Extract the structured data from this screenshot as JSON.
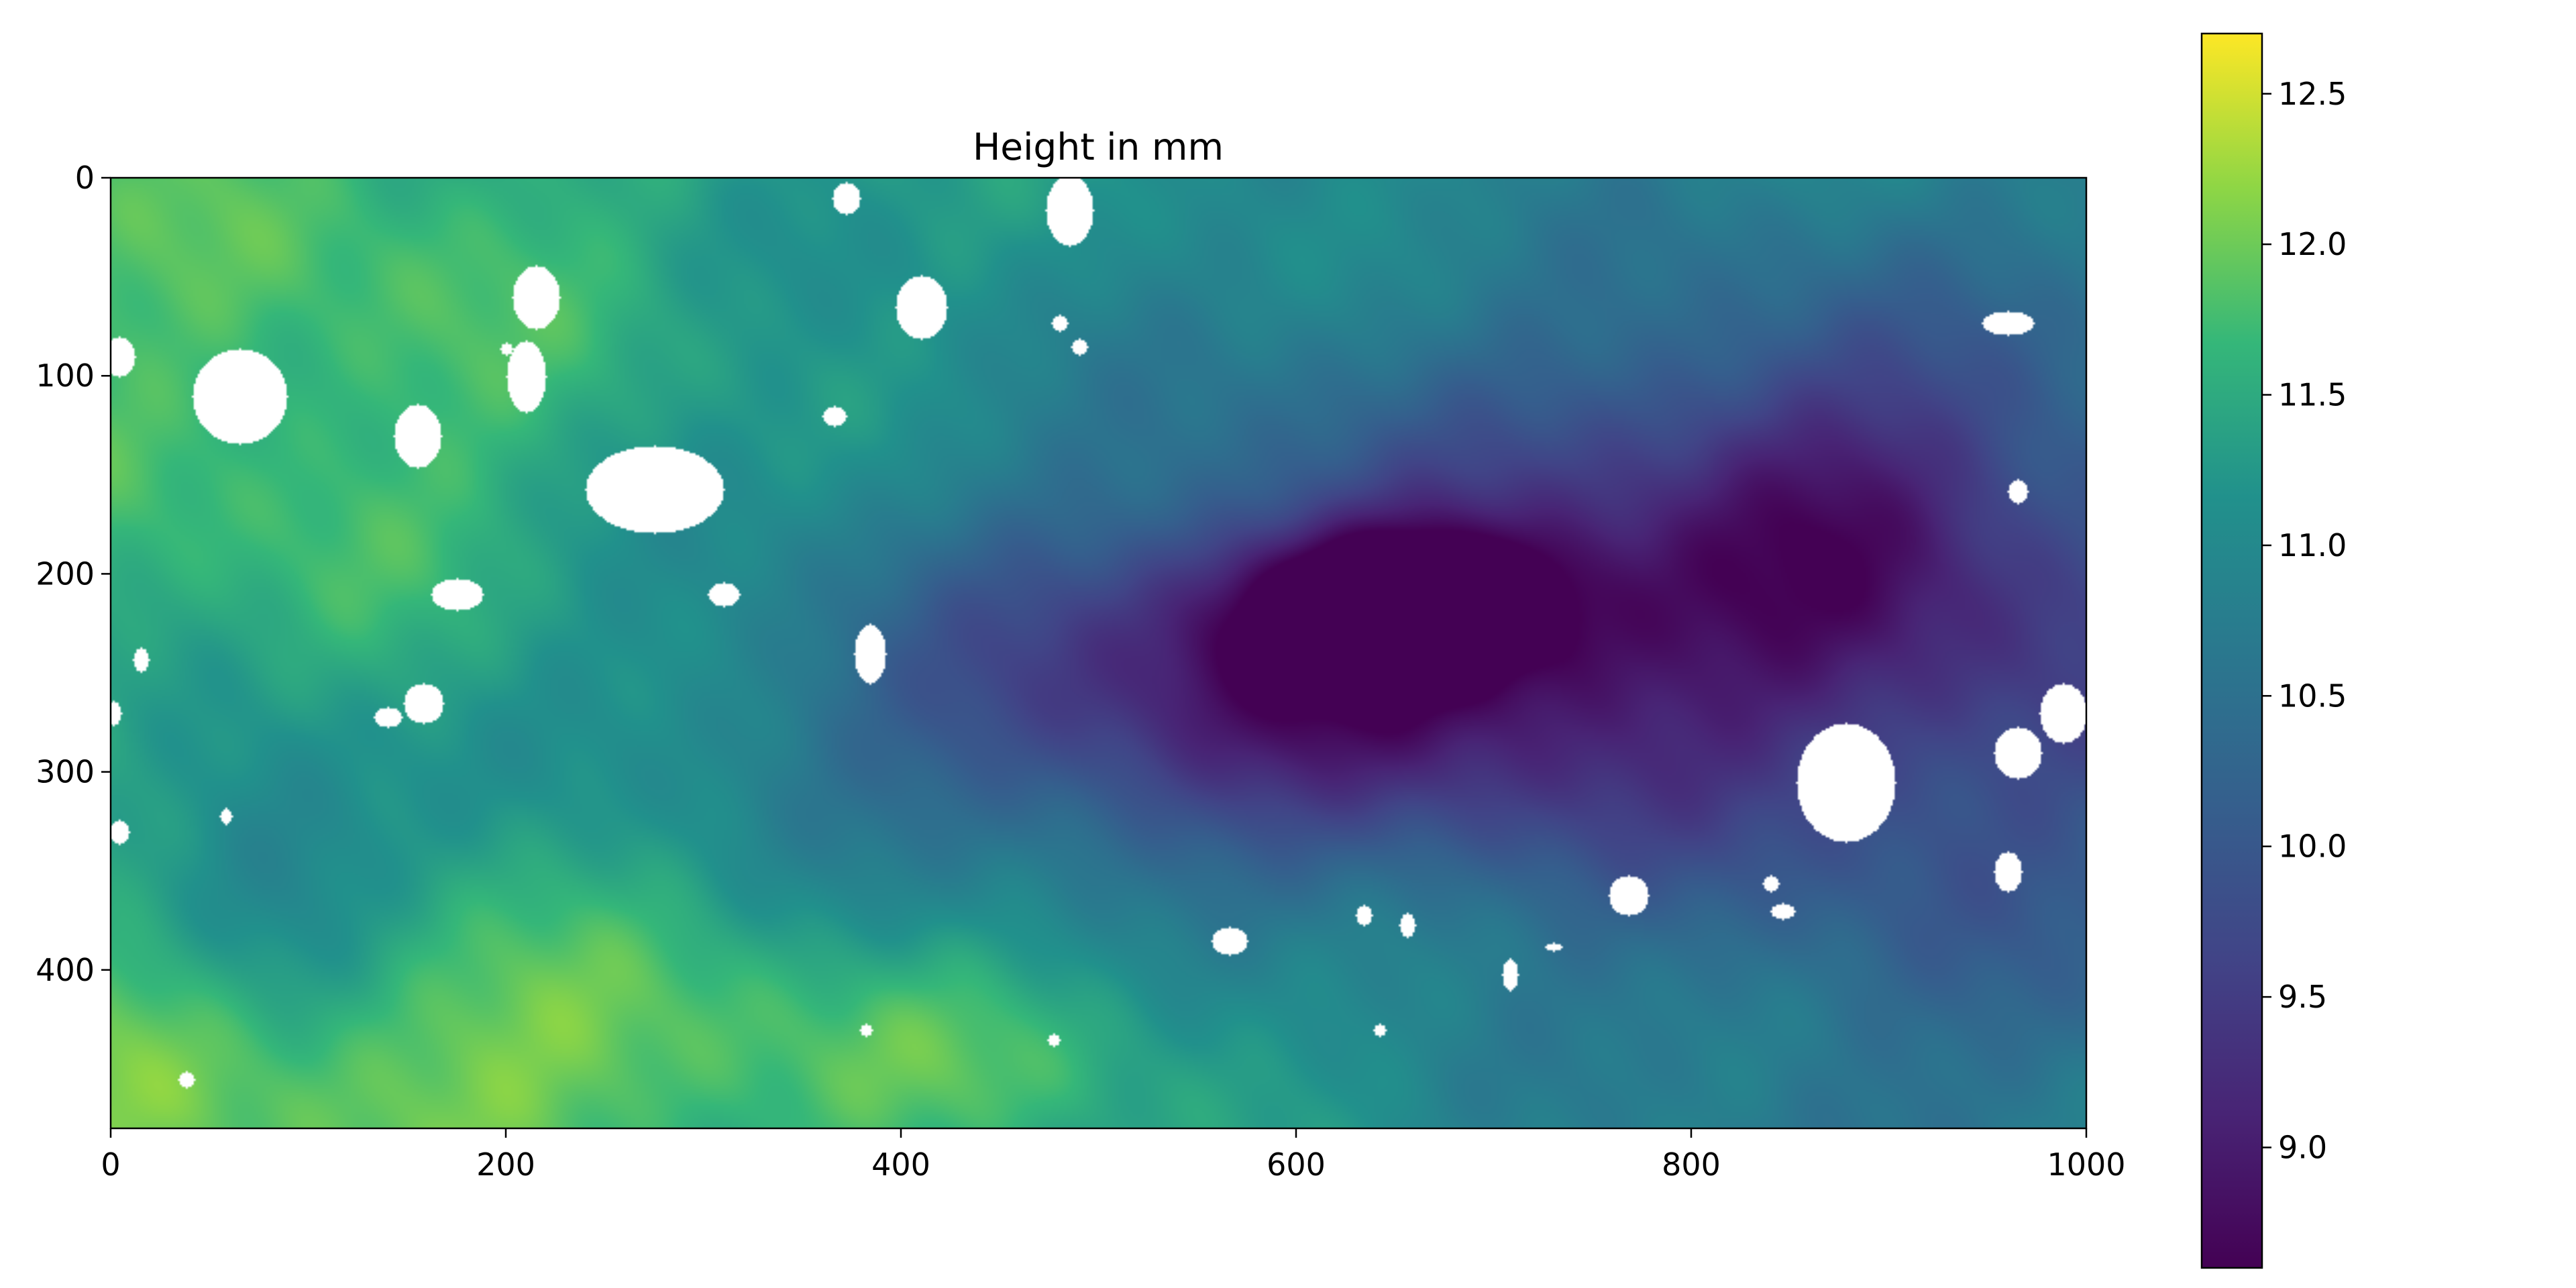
{
  "chart_data": {
    "type": "heatmap",
    "title": "Height in mm",
    "xlabel": "",
    "ylabel": "",
    "colormap": "viridis",
    "x_range": [
      0,
      1000
    ],
    "y_range": [
      480,
      0
    ],
    "x_ticks": [
      "0",
      "200",
      "400",
      "600",
      "800",
      "1000"
    ],
    "y_ticks": [
      "0",
      "100",
      "200",
      "300",
      "400"
    ],
    "colorbar": {
      "range": [
        8.6,
        12.7
      ],
      "ticks": [
        "9.0",
        "9.5",
        "10.0",
        "10.5",
        "11.0",
        "11.5",
        "12.0",
        "12.5"
      ]
    },
    "nan_color": "#ffffff",
    "grid": false,
    "surface": {
      "base": 11.5,
      "features": [
        {
          "x": 650,
          "y": 215,
          "sx": 60,
          "sy": 28,
          "dz": -2.3
        },
        {
          "x": 560,
          "y": 270,
          "sx": 150,
          "sy": 55,
          "dz": -1.2
        },
        {
          "x": 720,
          "y": 230,
          "sx": 260,
          "sy": 90,
          "dz": -0.9
        },
        {
          "x": 870,
          "y": 160,
          "sx": 70,
          "sy": 60,
          "dz": -0.8
        },
        {
          "x": 800,
          "y": 180,
          "sx": 200,
          "sy": 110,
          "dz": -0.6
        },
        {
          "x": 940,
          "y": 350,
          "sx": 160,
          "sy": 140,
          "dz": -0.5
        },
        {
          "x": 80,
          "y": 350,
          "sx": 45,
          "sy": 55,
          "dz": -0.9
        },
        {
          "x": 120,
          "y": 90,
          "sx": 120,
          "sy": 120,
          "dz": 0.4
        },
        {
          "x": 80,
          "y": 440,
          "sx": 150,
          "sy": 60,
          "dz": 0.5
        },
        {
          "x": 300,
          "y": 450,
          "sx": 140,
          "sy": 50,
          "dz": 0.4
        },
        {
          "x": 470,
          "y": 440,
          "sx": 80,
          "sy": 40,
          "dz": 0.3
        }
      ],
      "gaps": [
        {
          "x": 65,
          "y": 110,
          "rx": 24,
          "ry": 24
        },
        {
          "x": 210,
          "y": 100,
          "rx": 10,
          "ry": 18
        },
        {
          "x": 155,
          "y": 130,
          "rx": 12,
          "ry": 16
        },
        {
          "x": 215,
          "y": 60,
          "rx": 12,
          "ry": 16
        },
        {
          "x": 175,
          "y": 210,
          "rx": 13,
          "ry": 8
        },
        {
          "x": 275,
          "y": 157,
          "rx": 35,
          "ry": 22
        },
        {
          "x": 310,
          "y": 210,
          "rx": 8,
          "ry": 6
        },
        {
          "x": 384,
          "y": 240,
          "rx": 8,
          "ry": 15
        },
        {
          "x": 410,
          "y": 65,
          "rx": 13,
          "ry": 16
        },
        {
          "x": 485,
          "y": 16,
          "rx": 12,
          "ry": 18
        },
        {
          "x": 372,
          "y": 10,
          "rx": 7,
          "ry": 8
        },
        {
          "x": 366,
          "y": 120,
          "rx": 6,
          "ry": 5
        },
        {
          "x": 158,
          "y": 265,
          "rx": 10,
          "ry": 10
        },
        {
          "x": 140,
          "y": 272,
          "rx": 7,
          "ry": 5
        },
        {
          "x": 4,
          "y": 90,
          "rx": 8,
          "ry": 10
        },
        {
          "x": 878,
          "y": 305,
          "rx": 25,
          "ry": 30
        },
        {
          "x": 965,
          "y": 290,
          "rx": 12,
          "ry": 13
        },
        {
          "x": 988,
          "y": 270,
          "rx": 12,
          "ry": 15
        },
        {
          "x": 960,
          "y": 350,
          "rx": 7,
          "ry": 10
        },
        {
          "x": 768,
          "y": 362,
          "rx": 10,
          "ry": 10
        },
        {
          "x": 960,
          "y": 73,
          "rx": 13,
          "ry": 6
        },
        {
          "x": 965,
          "y": 158,
          "rx": 5,
          "ry": 6
        },
        {
          "x": 566,
          "y": 385,
          "rx": 9,
          "ry": 7
        },
        {
          "x": 656,
          "y": 377,
          "rx": 4,
          "ry": 6
        },
        {
          "x": 708,
          "y": 402,
          "rx": 4,
          "ry": 8
        },
        {
          "x": 846,
          "y": 370,
          "rx": 6,
          "ry": 4
        },
        {
          "x": 840,
          "y": 356,
          "rx": 4,
          "ry": 4
        },
        {
          "x": 4,
          "y": 330,
          "rx": 5,
          "ry": 6
        },
        {
          "x": 38,
          "y": 455,
          "rx": 4,
          "ry": 4
        },
        {
          "x": 15,
          "y": 243,
          "rx": 4,
          "ry": 6
        },
        {
          "x": 58,
          "y": 322,
          "rx": 3,
          "ry": 4
        },
        {
          "x": 480,
          "y": 73,
          "rx": 4,
          "ry": 4
        },
        {
          "x": 642,
          "y": 430,
          "rx": 3,
          "ry": 3
        },
        {
          "x": 730,
          "y": 388,
          "rx": 4,
          "ry": 2
        },
        {
          "x": 382,
          "y": 430,
          "rx": 3,
          "ry": 3
        },
        {
          "x": 477,
          "y": 435,
          "rx": 3,
          "ry": 3
        },
        {
          "x": 634,
          "y": 372,
          "rx": 4,
          "ry": 5
        },
        {
          "x": 1,
          "y": 270,
          "rx": 4,
          "ry": 6
        },
        {
          "x": 200,
          "y": 86,
          "rx": 3,
          "ry": 3
        },
        {
          "x": 490,
          "y": 85,
          "rx": 4,
          "ry": 4
        }
      ]
    }
  }
}
